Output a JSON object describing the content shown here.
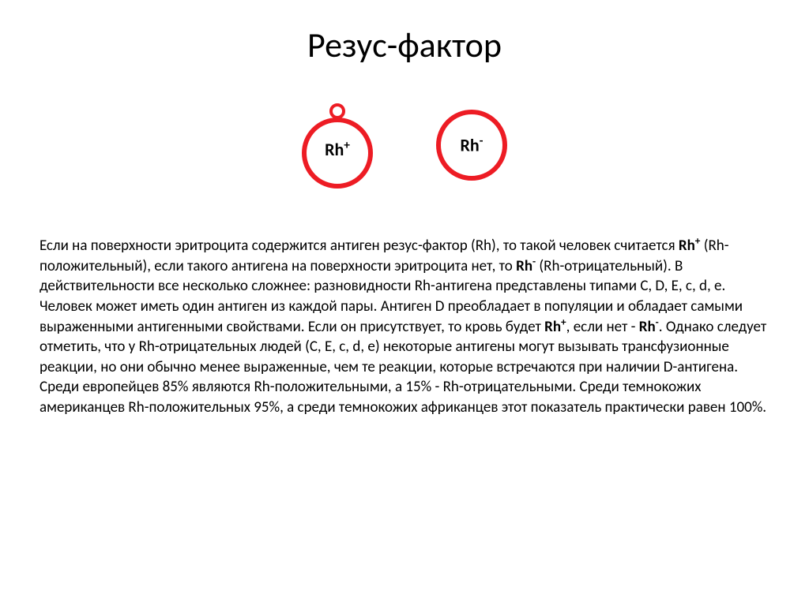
{
  "title": "Резус-фактор",
  "diagram": {
    "ring_color": "#ed1c24",
    "ring_stroke_width": 6,
    "antigen_ring_stroke": 4,
    "label_positive": "Rh",
    "label_positive_sup": "+",
    "label_negative": "Rh",
    "label_negative_sup": "-",
    "big_radius": 42,
    "small_radius": 8
  },
  "paragraph": {
    "p1a": "Если на поверхности эритроцита содержится антиген резус-фактор (Rh), то такой человек считается ",
    "p1b": "Rh",
    "p1b_sup": "+",
    "p1c": " (Rh-положительный), если такого антигена на поверхности эритроцита нет, то ",
    "p1d": "Rh",
    "p1d_sup": "-",
    "p1e": " (Rh-отрицательный). В действительности все несколько сложнее: разновидности Rh-антигена представлены типами C, D, E, c, d, e. Человек может иметь один антиген из каждой пары. Антиген D преобладает в популяции и обладает самыми выраженными антигенными свойствами. Если он присутствует, то кровь будет ",
    "p1f": "Rh",
    "p1f_sup": "+",
    "p1g": ", если нет - ",
    "p1h": "Rh",
    "p1h_sup": "-",
    "p1i": ". Однако следует отметить, что у Rh-отрицательных людей (C, E, c, d, e) некоторые антигены могут вызывать трансфузионные реакции, но они обычно менее выраженные, чем те реакции, которые встречаются при наличии D-антигена.",
    "p2": "Среди европейцев 85% являются Rh-положительными, а 15% - Rh-отрицательными. Среди темнокожих американцев Rh-положительных 95%, а среди темнокожих африканцев этот показатель практически равен 100%."
  }
}
